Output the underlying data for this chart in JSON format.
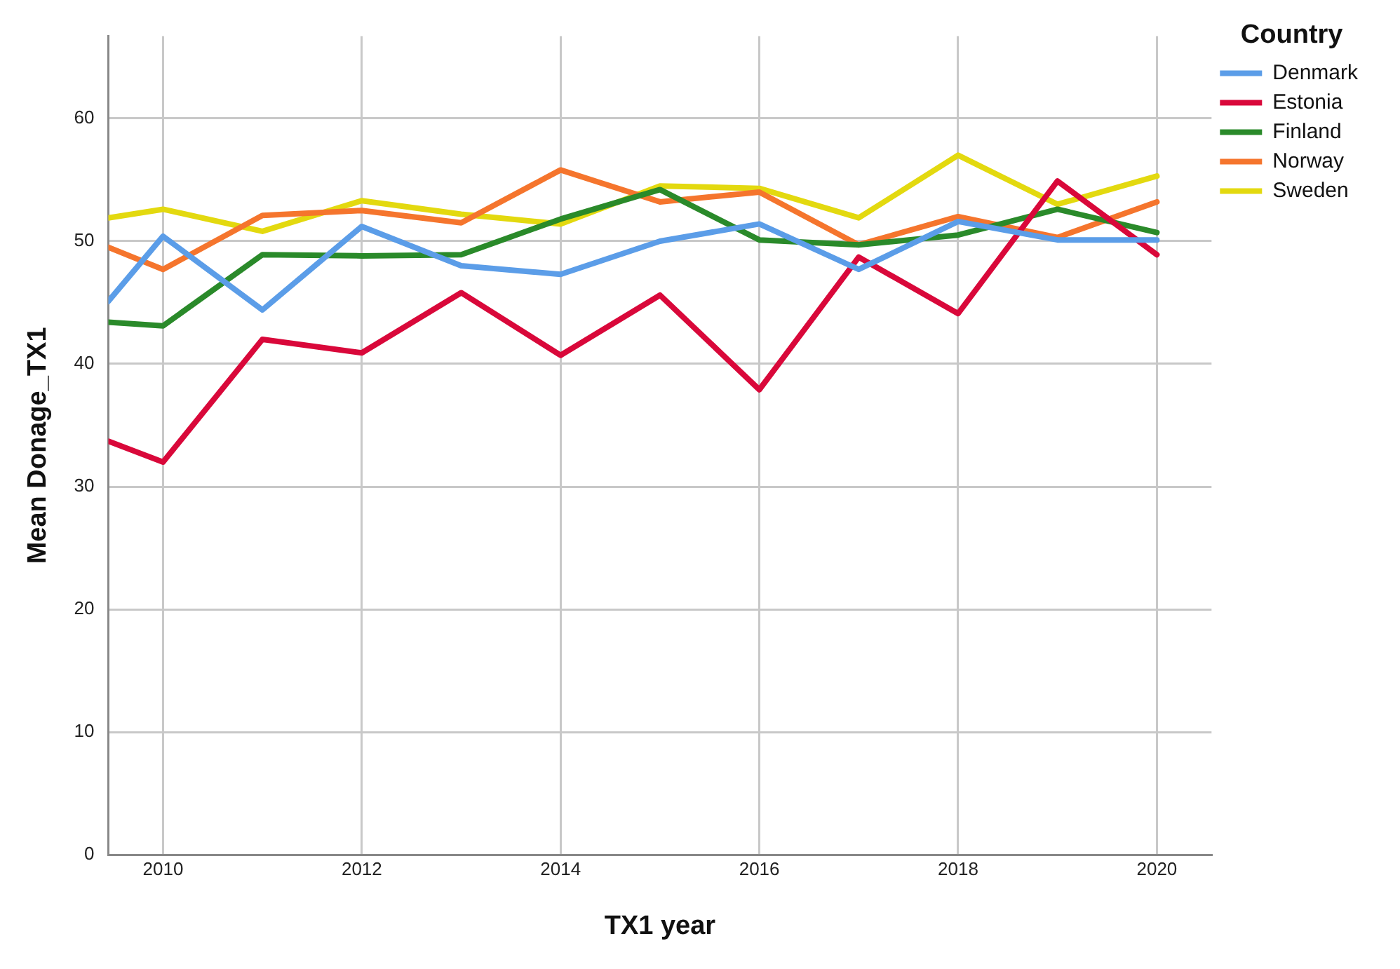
{
  "chart_data": {
    "type": "line",
    "xlabel": "TX1 year",
    "ylabel": "Mean Donage_TX1",
    "legend_title": "Country",
    "legend": "top right",
    "grid": true,
    "marker": "none",
    "line_style": "solid",
    "x": [
      2009.45,
      2010,
      2011,
      2012,
      2013,
      2014,
      2015,
      2016,
      2017,
      2018,
      2019,
      2020
    ],
    "xlim": [
      2009.45,
      2020.55
    ],
    "xticks": [
      2010,
      2012,
      2014,
      2016,
      2018,
      2020
    ],
    "ylim": [
      0,
      66.7
    ],
    "yticks": [
      0,
      10,
      20,
      30,
      40,
      50,
      60
    ],
    "series": [
      {
        "name": "Denmark",
        "color": "#5b9de8",
        "values": [
          45.1,
          50.4,
          44.4,
          51.2,
          48.0,
          47.3,
          50.0,
          51.4,
          47.7,
          51.6,
          50.1,
          50.1
        ]
      },
      {
        "name": "Estonia",
        "color": "#d9083a",
        "values": [
          33.7,
          32.0,
          42.0,
          40.9,
          45.8,
          40.7,
          45.6,
          37.9,
          48.7,
          44.1,
          54.9,
          48.9
        ]
      },
      {
        "name": "Finland",
        "color": "#2a8a2a",
        "values": [
          43.4,
          43.1,
          48.9,
          48.8,
          48.9,
          51.8,
          54.2,
          50.1,
          49.7,
          50.5,
          52.6,
          50.7
        ]
      },
      {
        "name": "Norway",
        "color": "#f5752d",
        "values": [
          49.5,
          47.7,
          52.1,
          52.5,
          51.5,
          55.8,
          53.2,
          54.0,
          49.7,
          52.0,
          50.3,
          53.2
        ]
      },
      {
        "name": "Sweden",
        "color": "#e3d90f",
        "values": [
          51.9,
          52.6,
          50.8,
          53.3,
          52.2,
          51.4,
          54.5,
          54.3,
          51.9,
          57.0,
          53.0,
          55.3
        ]
      }
    ]
  }
}
